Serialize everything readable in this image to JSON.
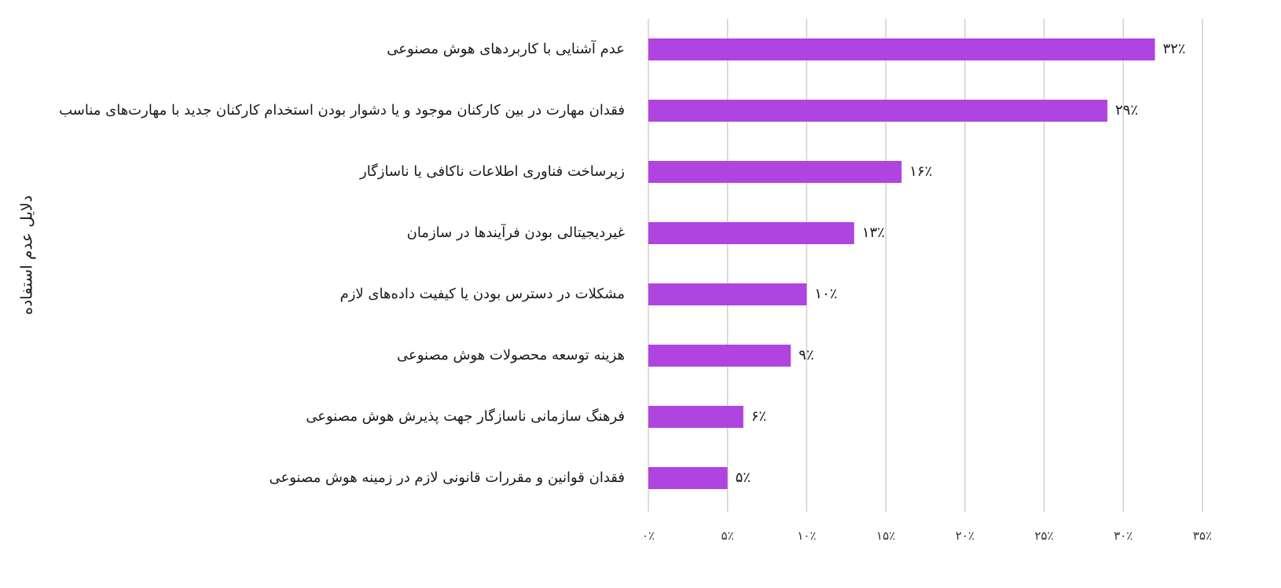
{
  "chart_data": {
    "type": "barh",
    "y_label": "دلایل عدم استفاده",
    "categories": [
      "عدم آشنایی با کاربردهای هوش مصنوعی",
      "فقدان مهارت در بین کارکنان موجود و یا دشوار بودن استخدام کارکنان جدید با مهارت‌های مناسب",
      "زیرساخت فناوری اطلاعات ناکافی یا ناسازگار",
      "غیردیجیتالی بودن فرآیندها در سازمان",
      "مشکلات در دسترس بودن یا کیفیت داده‌های لازم",
      "هزینه توسعه محصولات هوش مصنوعی",
      "فرهنگ سازمانی ناسازگار جهت پذیرش هوش مصنوعی",
      "فقدان قوانین و مقررات قانونی لازم در زمینه هوش مصنوعی"
    ],
    "values": [
      32,
      29,
      16,
      13,
      10,
      9,
      6,
      5
    ],
    "value_labels": [
      "۳۲٪",
      "۲۹٪",
      "۱۶٪",
      "۱۳٪",
      "۱۰٪",
      "۹٪",
      "۶٪",
      "۵٪"
    ],
    "color": "#b044e0",
    "xlim": [
      0,
      35
    ],
    "xticks": [
      {
        "value": 0,
        "label": "۰٪"
      },
      {
        "value": 5,
        "label": "۵٪"
      },
      {
        "value": 10,
        "label": "۱۰٪"
      },
      {
        "value": 15,
        "label": "۱۵٪"
      },
      {
        "value": 20,
        "label": "۲۰٪"
      },
      {
        "value": 25,
        "label": "۲۵٪"
      },
      {
        "value": 30,
        "label": "۳۰٪"
      },
      {
        "value": 35,
        "label": "۳۵٪"
      }
    ],
    "grid": true
  }
}
